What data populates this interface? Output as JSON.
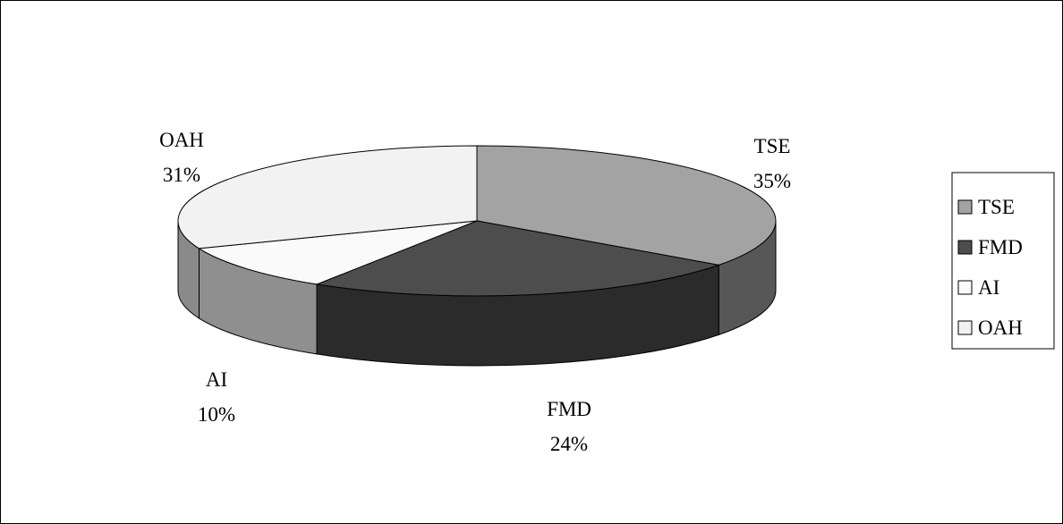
{
  "chart_data": {
    "type": "pie",
    "style": "3d-pie",
    "categories": [
      "TSE",
      "FMD",
      "AI",
      "OAH"
    ],
    "values": [
      35,
      24,
      10,
      31
    ],
    "percent_labels": [
      "35%",
      "24%",
      "10%",
      "31%"
    ],
    "colors": {
      "TSE": "#a3a3a3",
      "FMD": "#4d4d4d",
      "AI": "#fafafa",
      "OAH": "#f2f2f2"
    },
    "legend": {
      "position": "right",
      "entries": [
        "TSE",
        "FMD",
        "AI",
        "OAH"
      ]
    }
  }
}
